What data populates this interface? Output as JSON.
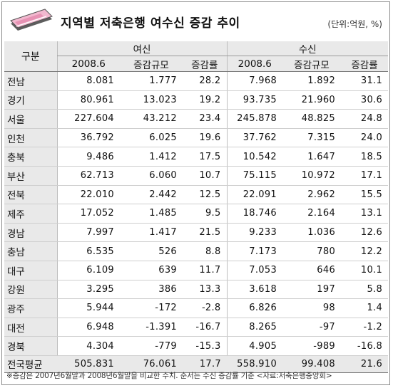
{
  "header": {
    "title": "지역별 저축은행 여수신 증감 추이",
    "unit": "(단위:억원, %)"
  },
  "table": {
    "region_header": "구분",
    "groups": [
      "여신",
      "수신"
    ],
    "sub_headers": [
      "2008.6",
      "증감규모",
      "증감률",
      "2008.6",
      "증감규모",
      "증감률"
    ],
    "rows": [
      [
        "전남",
        "8.081",
        "1.777",
        "28.2",
        "7.968",
        "1.892",
        "31.1"
      ],
      [
        "경기",
        "80.961",
        "13.023",
        "19.2",
        "93.735",
        "21.960",
        "30.6"
      ],
      [
        "서울",
        "227.604",
        "43.212",
        "23.4",
        "245.878",
        "48.825",
        "24.8"
      ],
      [
        "인천",
        "36.792",
        "6.025",
        "19.6",
        "37.762",
        "7.315",
        "24.0"
      ],
      [
        "충북",
        "9.486",
        "1.412",
        "17.5",
        "10.542",
        "1.647",
        "18.5"
      ],
      [
        "부산",
        "62.713",
        "6.060",
        "10.7",
        "75.115",
        "10.972",
        "17.1"
      ],
      [
        "전북",
        "22.010",
        "2.442",
        "12.5",
        "22.091",
        "2.962",
        "15.5"
      ],
      [
        "제주",
        "17.052",
        "1.485",
        "9.5",
        "18.746",
        "2.164",
        "13.1"
      ],
      [
        "경남",
        "7.997",
        "1.417",
        "21.5",
        "9.233",
        "1.036",
        "12.6"
      ],
      [
        "충남",
        "6.535",
        "526",
        "8.8",
        "7.173",
        "780",
        "12.2"
      ],
      [
        "대구",
        "6.109",
        "639",
        "11.7",
        "7.053",
        "646",
        "10.1"
      ],
      [
        "강원",
        "3.295",
        "386",
        "13.3",
        "3.618",
        "197",
        "5.8"
      ],
      [
        "광주",
        "5.944",
        "-172",
        "-2.8",
        "6.826",
        "98",
        "1.4"
      ],
      [
        "대전",
        "6.948",
        "-1.391",
        "-16.7",
        "8.265",
        "-97",
        "-1.2"
      ],
      [
        "경북",
        "4.304",
        "-779",
        "-15.3",
        "4.905",
        "-989",
        "-16.8"
      ]
    ],
    "total": [
      "전국평균",
      "505.831",
      "76.061",
      "17.7",
      "558.910",
      "99.408",
      "21.6"
    ]
  },
  "footnote": "※증감은 2007년6월말과 2008년6월말을 비교한 수치. 순서는 수신 증감률 기준 <자료:저축은행중앙회>",
  "colors": {
    "header_bg": "#e9e9e9",
    "border": "#777777"
  },
  "icons": {
    "logo": "bankbook-card-icon"
  }
}
